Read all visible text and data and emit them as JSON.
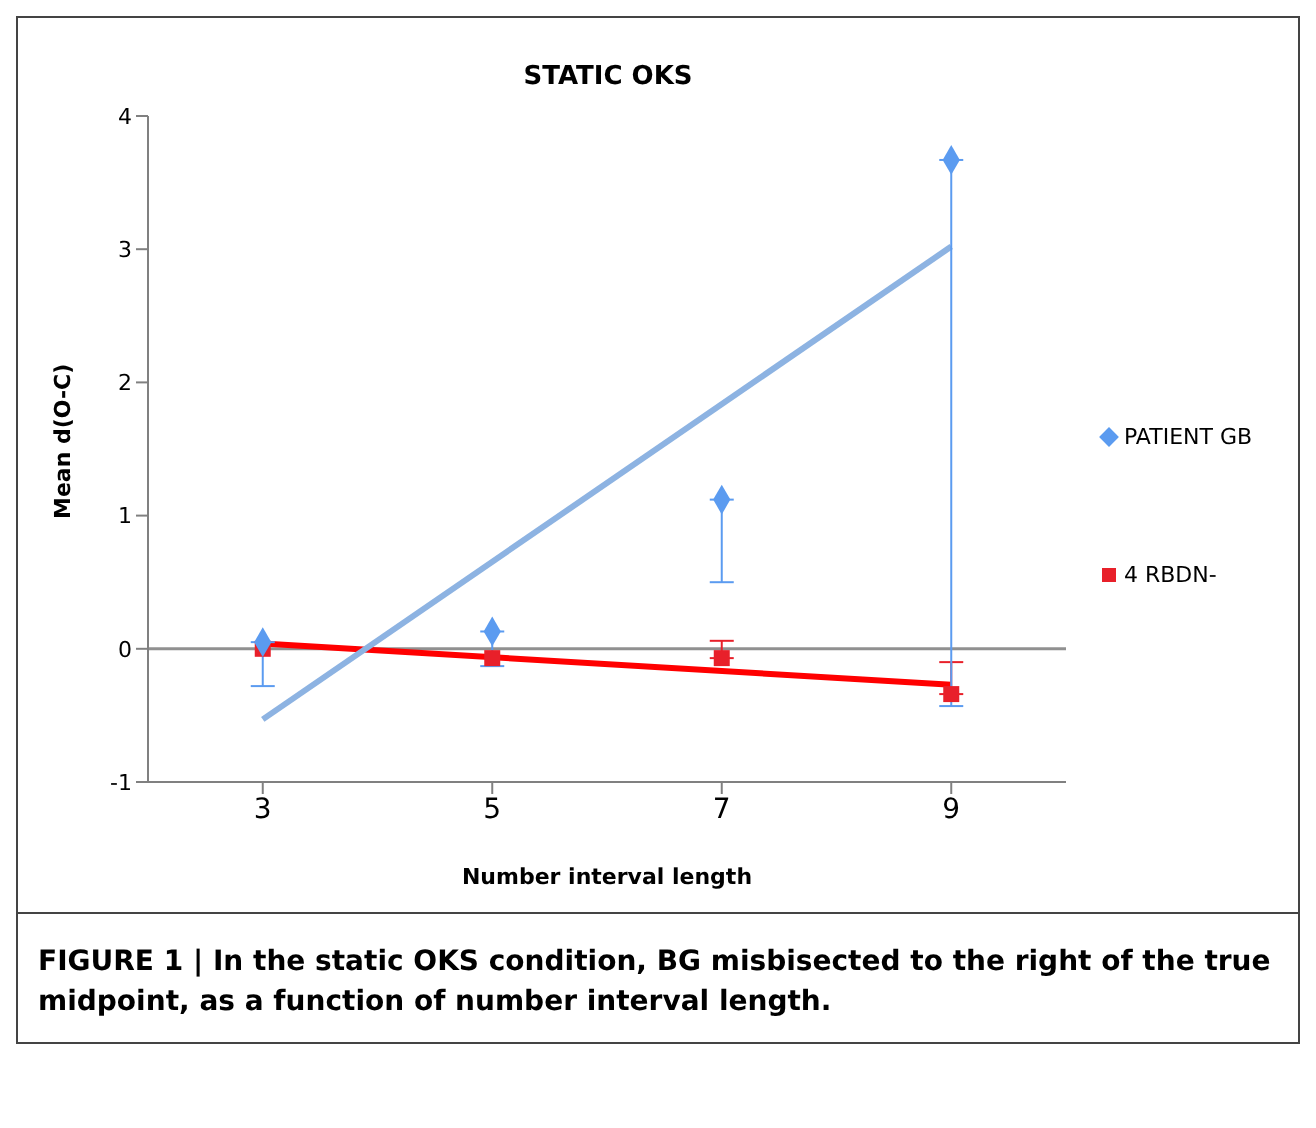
{
  "chart_data": {
    "type": "scatter",
    "title": "STATIC OKS",
    "xlabel": "Number interval length",
    "ylabel": "Mean d(O-C)",
    "xlim": [
      2,
      10
    ],
    "xticks": [
      3,
      5,
      7,
      9
    ],
    "ylim": [
      -1,
      4
    ],
    "yticks": [
      -1,
      0,
      1,
      2,
      3,
      4
    ],
    "grid": false,
    "legend": "right",
    "ref_lines": [
      {
        "axis": "y",
        "value": 0,
        "color": "#909090"
      }
    ],
    "series": [
      {
        "name": "PATIENT GB",
        "marker": "diamond",
        "color": "#5b9bf0",
        "x": [
          3,
          5,
          7,
          9
        ],
        "values": [
          0.05,
          0.13,
          1.12,
          3.67
        ],
        "errors": [
          [
            -0.28,
            0.05
          ],
          [
            -0.13,
            0.13
          ],
          [
            0.5,
            1.12
          ],
          [
            -0.43,
            3.67
          ]
        ]
      },
      {
        "name": "4 RBDN-",
        "marker": "square",
        "color": "#e8202a",
        "x": [
          3,
          5,
          7,
          9
        ],
        "values": [
          0.0,
          -0.07,
          -0.07,
          -0.34
        ],
        "errors": [
          null,
          null,
          [
            -0.07,
            0.06
          ],
          [
            -0.34,
            -0.1
          ]
        ]
      },
      {
        "type": "line",
        "marker": "none",
        "color": "#8db3e2",
        "x": [
          3,
          9
        ],
        "values": [
          -0.53,
          3.02
        ]
      },
      {
        "type": "line",
        "marker": "none",
        "color": "#ff0000",
        "x": [
          3,
          9
        ],
        "values": [
          0.04,
          -0.27
        ]
      }
    ],
    "annotations": [
      "FIGURE 1 | In the static OKS condition, BG misbisected to the right of the true midpoint, as a function of number interval length."
    ]
  }
}
